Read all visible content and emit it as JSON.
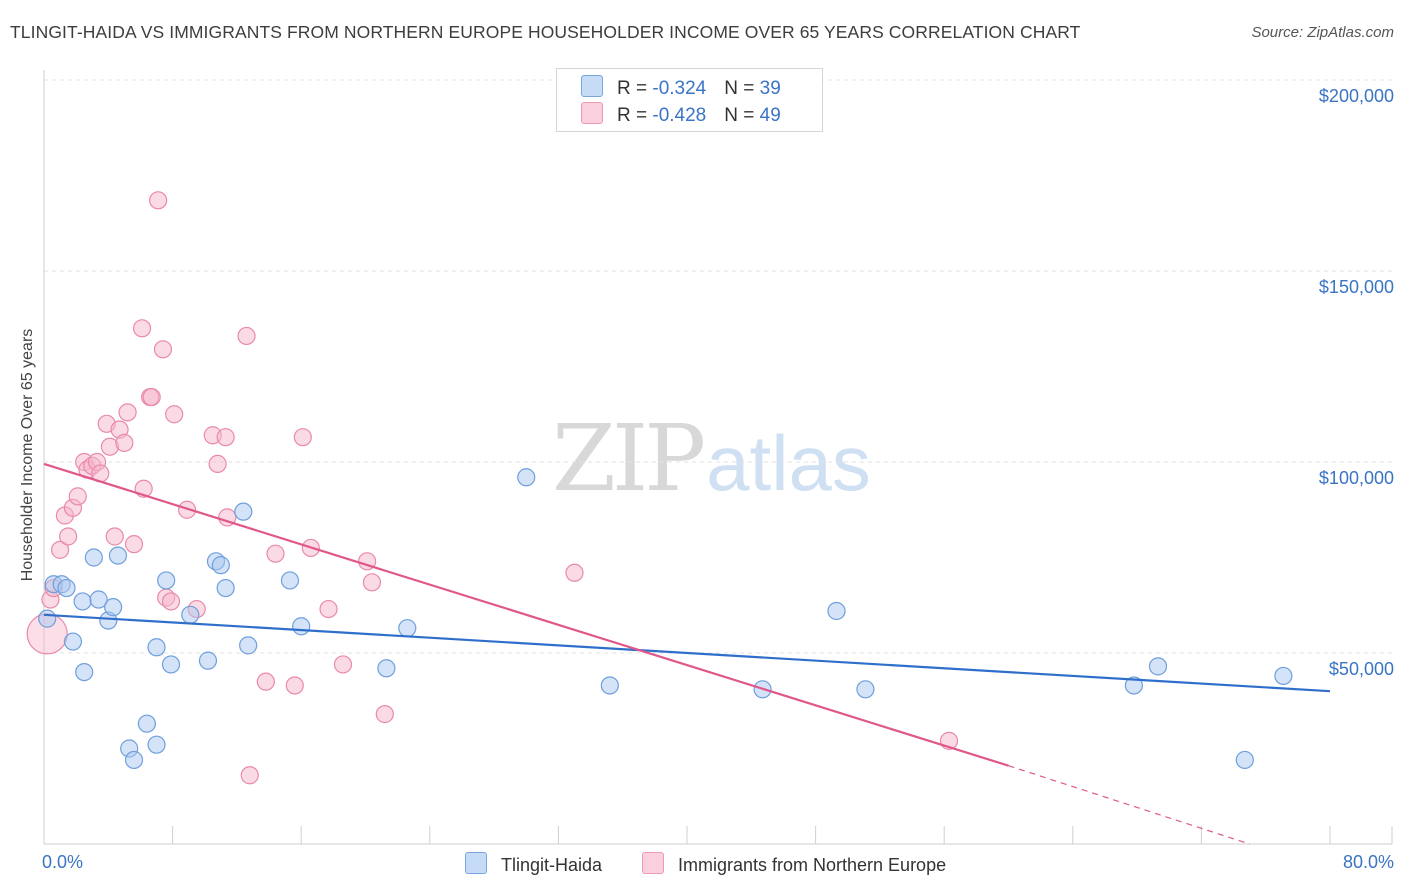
{
  "header": {
    "title": "TLINGIT-HAIDA VS IMMIGRANTS FROM NORTHERN EUROPE HOUSEHOLDER INCOME OVER 65 YEARS CORRELATION CHART",
    "source": "Source: ZipAtlas.com"
  },
  "watermark": {
    "zip": "ZIP",
    "atlas": "atlas"
  },
  "legend_top": {
    "rows": [
      {
        "r_label": "R = ",
        "r_value": "-0.324",
        "n_label": "N = ",
        "n_value": "39"
      },
      {
        "r_label": "R = ",
        "r_value": "-0.428",
        "n_label": "N = ",
        "n_value": "49"
      }
    ]
  },
  "colors": {
    "blue_fill": "#a9c8f0",
    "blue_stroke": "#6f9fdc",
    "blue_line": "#2f6fcb",
    "pink_fill": "#f6b6cb",
    "pink_stroke": "#e98aaa",
    "pink_line": "#e0588b",
    "tick_text": "#3a74c4",
    "grid": "#e2e2e2"
  },
  "chart_data": {
    "type": "scatter",
    "title": "TLINGIT-HAIDA VS IMMIGRANTS FROM NORTHERN EUROPE HOUSEHOLDER INCOME OVER 65 YEARS CORRELATION CHART",
    "xlabel": "",
    "ylabel": "Householder Income Over 65 years",
    "xlim": [
      0,
      0.8
    ],
    "ylim": [
      0,
      210000
    ],
    "x_tick_labels": [
      "0.0%",
      "80.0%"
    ],
    "y_ticks": [
      50000,
      100000,
      150000,
      200000
    ],
    "y_tick_labels": [
      "$50,000",
      "$100,000",
      "$150,000",
      "$200,000"
    ],
    "grid": true,
    "series": [
      {
        "name": "Tlingit-Haida",
        "color": "#a9c8f0",
        "r": -0.324,
        "n": 39,
        "trend": {
          "x0": 0.0,
          "y0": 60000,
          "x1": 0.8,
          "y1": 40000
        },
        "points": [
          [
            0.002,
            59000
          ],
          [
            0.006,
            68000
          ],
          [
            0.011,
            68000
          ],
          [
            0.014,
            67000
          ],
          [
            0.018,
            53000
          ],
          [
            0.024,
            63500
          ],
          [
            0.025,
            45000
          ],
          [
            0.031,
            75000
          ],
          [
            0.034,
            64000
          ],
          [
            0.04,
            58500
          ],
          [
            0.043,
            62000
          ],
          [
            0.046,
            75500
          ],
          [
            0.053,
            25000
          ],
          [
            0.056,
            22000
          ],
          [
            0.064,
            31500
          ],
          [
            0.07,
            26000
          ],
          [
            0.07,
            51500
          ],
          [
            0.076,
            69000
          ],
          [
            0.079,
            47000
          ],
          [
            0.091,
            60000
          ],
          [
            0.102,
            48000
          ],
          [
            0.107,
            74000
          ],
          [
            0.11,
            73000
          ],
          [
            0.113,
            67000
          ],
          [
            0.124,
            87000
          ],
          [
            0.127,
            52000
          ],
          [
            0.153,
            69000
          ],
          [
            0.16,
            57000
          ],
          [
            0.213,
            46000
          ],
          [
            0.226,
            56500
          ],
          [
            0.3,
            96000
          ],
          [
            0.352,
            41500
          ],
          [
            0.447,
            40500
          ],
          [
            0.493,
            61000
          ],
          [
            0.511,
            40500
          ],
          [
            0.678,
            41500
          ],
          [
            0.693,
            46500
          ],
          [
            0.747,
            22000
          ],
          [
            0.771,
            44000
          ]
        ]
      },
      {
        "name": "Immigrants from Northern Europe",
        "color": "#f6b6cb",
        "r": -0.428,
        "n": 49,
        "trend": {
          "x0": 0.0,
          "y0": 99500,
          "x1": 0.6,
          "y1": 20500
        },
        "trend_dashed": {
          "x0": 0.6,
          "y0": 20500,
          "x1": 0.75,
          "y1": 0
        },
        "points": [
          [
            0.002,
            55000
          ],
          [
            0.004,
            64000
          ],
          [
            0.006,
            67000
          ],
          [
            0.01,
            77000
          ],
          [
            0.013,
            86000
          ],
          [
            0.015,
            80500
          ],
          [
            0.018,
            88000
          ],
          [
            0.021,
            91000
          ],
          [
            0.025,
            100000
          ],
          [
            0.027,
            98000
          ],
          [
            0.03,
            99000
          ],
          [
            0.033,
            100000
          ],
          [
            0.035,
            97000
          ],
          [
            0.039,
            110000
          ],
          [
            0.041,
            104000
          ],
          [
            0.044,
            80500
          ],
          [
            0.047,
            108500
          ],
          [
            0.05,
            105000
          ],
          [
            0.052,
            113000
          ],
          [
            0.056,
            78500
          ],
          [
            0.061,
            135000
          ],
          [
            0.062,
            93000
          ],
          [
            0.066,
            117000
          ],
          [
            0.067,
            117000
          ],
          [
            0.071,
            168500
          ],
          [
            0.074,
            129500
          ],
          [
            0.076,
            64500
          ],
          [
            0.079,
            63500
          ],
          [
            0.081,
            112500
          ],
          [
            0.089,
            87500
          ],
          [
            0.095,
            61500
          ],
          [
            0.105,
            107000
          ],
          [
            0.108,
            99500
          ],
          [
            0.113,
            106500
          ],
          [
            0.114,
            85500
          ],
          [
            0.138,
            42500
          ],
          [
            0.126,
            133000
          ],
          [
            0.128,
            18000
          ],
          [
            0.144,
            76000
          ],
          [
            0.156,
            41500
          ],
          [
            0.161,
            106500
          ],
          [
            0.166,
            77500
          ],
          [
            0.177,
            61500
          ],
          [
            0.186,
            47000
          ],
          [
            0.201,
            74000
          ],
          [
            0.204,
            68500
          ],
          [
            0.212,
            34000
          ],
          [
            0.33,
            71000
          ],
          [
            0.563,
            27000
          ]
        ]
      }
    ]
  },
  "legend_bottom": {
    "items": [
      {
        "label": "Tlingit-Haida"
      },
      {
        "label": "Immigrants from Northern Europe"
      }
    ]
  }
}
